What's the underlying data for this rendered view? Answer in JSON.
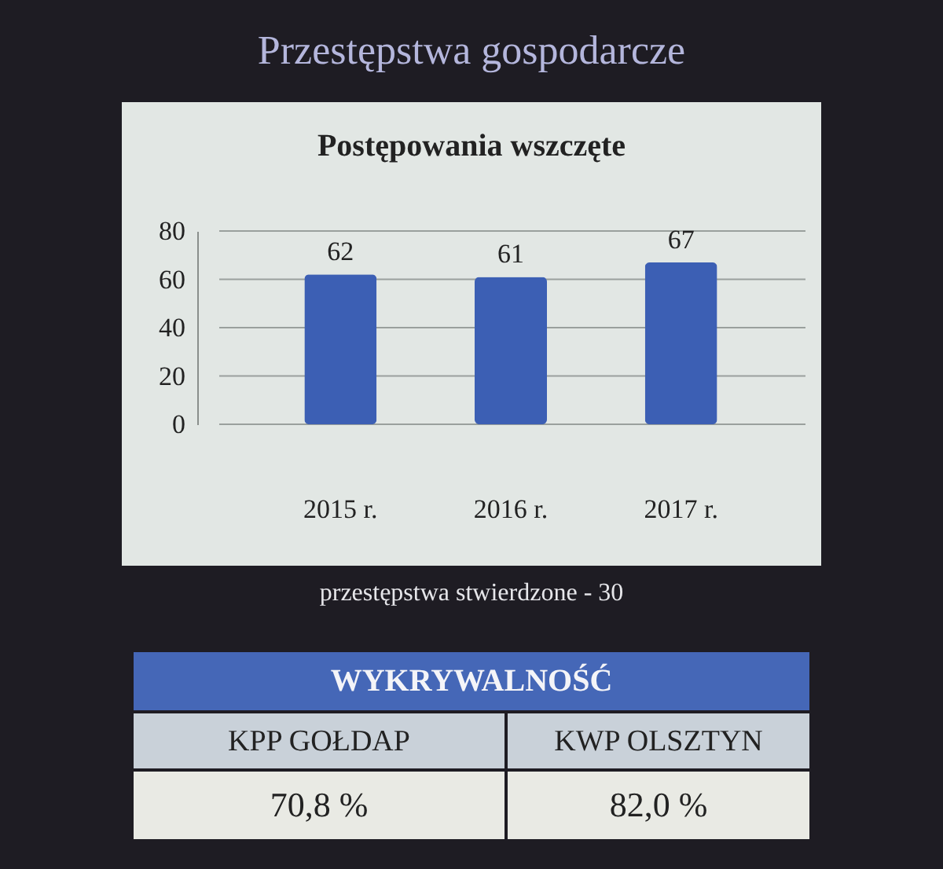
{
  "chart_data": {
    "type": "bar",
    "title": "Przestępstwa gospodarcze",
    "subtitle": "Postępowania wszczęte",
    "categories": [
      "2015 r.",
      "2016 r.",
      "2017 r."
    ],
    "values": [
      62,
      61,
      67
    ],
    "color": "#3c5fb4",
    "ylim": [
      0,
      80
    ],
    "yticks": [
      0,
      20,
      40,
      60,
      80
    ],
    "grid": "y",
    "data_labels": true,
    "annotations": [
      "przestępstwa stwierdzone - 30",
      "WYKRYWALNOŚĆ",
      "KPP GOŁDAP",
      "KWP OLSZTYN",
      "70,8 %",
      "82,0 %"
    ]
  }
}
